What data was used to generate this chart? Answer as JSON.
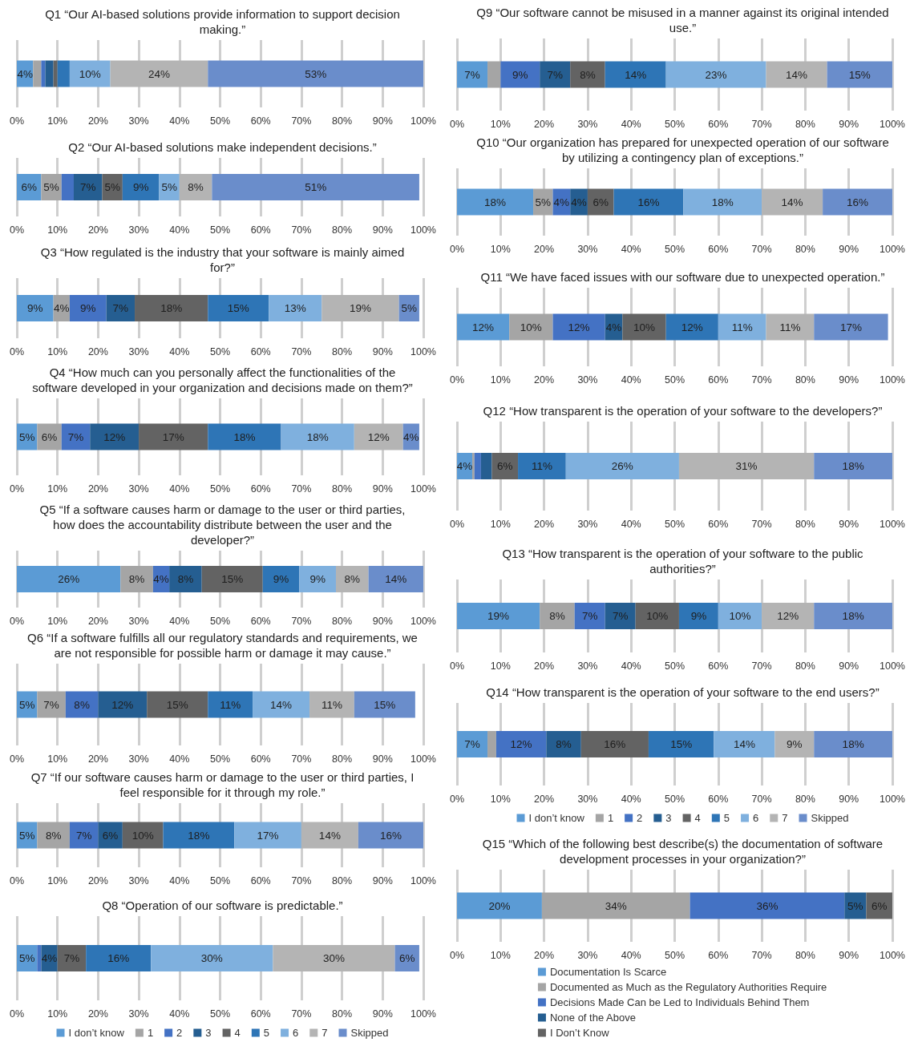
{
  "chart_data": [
    {
      "type": "bar",
      "orientation": "horizontal",
      "stacked": true,
      "title": "Q1 “Our AI-based solutions provide information to support decision making.”",
      "categories": [
        null
      ],
      "xlim": [
        0,
        100
      ],
      "xticks": [
        {
          "value": 0,
          "label": "0%"
        },
        {
          "value": 10,
          "label": "10%"
        },
        {
          "value": 20,
          "label": "20%"
        },
        {
          "value": 30,
          "label": "30%"
        },
        {
          "value": 40,
          "label": "40%"
        },
        {
          "value": 50,
          "label": "50%"
        },
        {
          "value": 60,
          "label": "60%"
        },
        {
          "value": 70,
          "label": "70%"
        },
        {
          "value": 80,
          "label": "80%"
        },
        {
          "value": 90,
          "label": "90%"
        },
        {
          "value": 100,
          "label": "100%"
        }
      ],
      "grid": "x",
      "series": [
        {
          "color": "#5b9bd5",
          "values": [
            4
          ],
          "value_labels": [
            "4%"
          ]
        },
        {
          "color": "#a5a5a5",
          "values": [
            2
          ],
          "value_labels": [
            null
          ]
        },
        {
          "color": "#4472c4",
          "values": [
            1
          ],
          "value_labels": [
            null
          ]
        },
        {
          "color": "#255e91",
          "values": [
            2
          ],
          "value_labels": [
            null
          ]
        },
        {
          "color": "#636363",
          "values": [
            1
          ],
          "value_labels": [
            null
          ]
        },
        {
          "color": "#2e75b6",
          "values": [
            3
          ],
          "value_labels": [
            null
          ]
        },
        {
          "color": "#7fb0de",
          "values": [
            10
          ],
          "value_labels": [
            "10%"
          ]
        },
        {
          "color": "#b4b4b4",
          "values": [
            24
          ],
          "value_labels": [
            "24%"
          ]
        },
        {
          "color": "#6a8dcb",
          "values": [
            53
          ],
          "value_labels": [
            "53%"
          ]
        }
      ]
    },
    {
      "type": "bar",
      "orientation": "horizontal",
      "stacked": true,
      "title": "Q2 “Our AI-based solutions make independent decisions.”",
      "categories": [
        null
      ],
      "xlim": [
        0,
        100
      ],
      "xticks": [
        {
          "value": 0,
          "label": "0%"
        },
        {
          "value": 10,
          "label": "10%"
        },
        {
          "value": 20,
          "label": "20%"
        },
        {
          "value": 30,
          "label": "30%"
        },
        {
          "value": 40,
          "label": "40%"
        },
        {
          "value": 50,
          "label": "50%"
        },
        {
          "value": 60,
          "label": "60%"
        },
        {
          "value": 70,
          "label": "70%"
        },
        {
          "value": 80,
          "label": "80%"
        },
        {
          "value": 90,
          "label": "90%"
        },
        {
          "value": 100,
          "label": "100%"
        }
      ],
      "grid": "x",
      "series": [
        {
          "color": "#5b9bd5",
          "values": [
            6
          ],
          "value_labels": [
            "6%"
          ]
        },
        {
          "color": "#a5a5a5",
          "values": [
            5
          ],
          "value_labels": [
            "5%"
          ]
        },
        {
          "color": "#4472c4",
          "values": [
            3
          ],
          "value_labels": [
            null
          ]
        },
        {
          "color": "#255e91",
          "values": [
            7
          ],
          "value_labels": [
            "7%"
          ]
        },
        {
          "color": "#636363",
          "values": [
            5
          ],
          "value_labels": [
            "5%"
          ]
        },
        {
          "color": "#2e75b6",
          "values": [
            9
          ],
          "value_labels": [
            "9%"
          ]
        },
        {
          "color": "#7fb0de",
          "values": [
            5
          ],
          "value_labels": [
            "5%"
          ]
        },
        {
          "color": "#b4b4b4",
          "values": [
            8
          ],
          "value_labels": [
            "8%"
          ]
        },
        {
          "color": "#6a8dcb",
          "values": [
            51
          ],
          "value_labels": [
            "51%"
          ]
        }
      ]
    },
    {
      "type": "bar",
      "orientation": "horizontal",
      "stacked": true,
      "title": "Q3 “How regulated is the industry that your software is mainly aimed for?”",
      "categories": [
        null
      ],
      "xlim": [
        0,
        100
      ],
      "xticks": [
        {
          "value": 0,
          "label": "0%"
        },
        {
          "value": 10,
          "label": "10%"
        },
        {
          "value": 20,
          "label": "20%"
        },
        {
          "value": 30,
          "label": "30%"
        },
        {
          "value": 40,
          "label": "40%"
        },
        {
          "value": 50,
          "label": "50%"
        },
        {
          "value": 60,
          "label": "60%"
        },
        {
          "value": 70,
          "label": "70%"
        },
        {
          "value": 80,
          "label": "80%"
        },
        {
          "value": 90,
          "label": "90%"
        },
        {
          "value": 100,
          "label": "100%"
        }
      ],
      "grid": "x",
      "series": [
        {
          "color": "#5b9bd5",
          "values": [
            9
          ],
          "value_labels": [
            "9%"
          ]
        },
        {
          "color": "#a5a5a5",
          "values": [
            4
          ],
          "value_labels": [
            "4%"
          ]
        },
        {
          "color": "#4472c4",
          "values": [
            9
          ],
          "value_labels": [
            "9%"
          ]
        },
        {
          "color": "#255e91",
          "values": [
            7
          ],
          "value_labels": [
            "7%"
          ]
        },
        {
          "color": "#636363",
          "values": [
            18
          ],
          "value_labels": [
            "18%"
          ]
        },
        {
          "color": "#2e75b6",
          "values": [
            15
          ],
          "value_labels": [
            "15%"
          ]
        },
        {
          "color": "#7fb0de",
          "values": [
            13
          ],
          "value_labels": [
            "13%"
          ]
        },
        {
          "color": "#b4b4b4",
          "values": [
            19
          ],
          "value_labels": [
            "19%"
          ]
        },
        {
          "color": "#6a8dcb",
          "values": [
            5
          ],
          "value_labels": [
            "5%"
          ]
        }
      ]
    },
    {
      "type": "bar",
      "orientation": "horizontal",
      "stacked": true,
      "title": "Q4 “How much can you personally affect the functionalities of the software developed in your organization and decisions made on them?”",
      "categories": [
        null
      ],
      "xlim": [
        0,
        100
      ],
      "xticks": [
        {
          "value": 0,
          "label": "0%"
        },
        {
          "value": 10,
          "label": "10%"
        },
        {
          "value": 20,
          "label": "20%"
        },
        {
          "value": 30,
          "label": "30%"
        },
        {
          "value": 40,
          "label": "40%"
        },
        {
          "value": 50,
          "label": "50%"
        },
        {
          "value": 60,
          "label": "60%"
        },
        {
          "value": 70,
          "label": "70%"
        },
        {
          "value": 80,
          "label": "80%"
        },
        {
          "value": 90,
          "label": "90%"
        },
        {
          "value": 100,
          "label": "100%"
        }
      ],
      "grid": "x",
      "series": [
        {
          "color": "#5b9bd5",
          "values": [
            5
          ],
          "value_labels": [
            "5%"
          ]
        },
        {
          "color": "#a5a5a5",
          "values": [
            6
          ],
          "value_labels": [
            "6%"
          ]
        },
        {
          "color": "#4472c4",
          "values": [
            7
          ],
          "value_labels": [
            "7%"
          ]
        },
        {
          "color": "#255e91",
          "values": [
            12
          ],
          "value_labels": [
            "12%"
          ]
        },
        {
          "color": "#636363",
          "values": [
            17
          ],
          "value_labels": [
            "17%"
          ]
        },
        {
          "color": "#2e75b6",
          "values": [
            18
          ],
          "value_labels": [
            "18%"
          ]
        },
        {
          "color": "#7fb0de",
          "values": [
            18
          ],
          "value_labels": [
            "18%"
          ]
        },
        {
          "color": "#b4b4b4",
          "values": [
            12
          ],
          "value_labels": [
            "12%"
          ]
        },
        {
          "color": "#6a8dcb",
          "values": [
            4
          ],
          "value_labels": [
            "4%"
          ]
        }
      ]
    },
    {
      "type": "bar",
      "orientation": "horizontal",
      "stacked": true,
      "title": "Q5 “If a software causes harm or damage to the user or third parties, how does the accountability distribute between the user and the developer?”",
      "categories": [
        null
      ],
      "xlim": [
        0,
        100
      ],
      "xticks": [
        {
          "value": 0,
          "label": "0%"
        },
        {
          "value": 10,
          "label": "10%"
        },
        {
          "value": 20,
          "label": "20%"
        },
        {
          "value": 30,
          "label": "30%"
        },
        {
          "value": 40,
          "label": "40%"
        },
        {
          "value": 50,
          "label": "50%"
        },
        {
          "value": 60,
          "label": "60%"
        },
        {
          "value": 70,
          "label": "70%"
        },
        {
          "value": 80,
          "label": "80%"
        },
        {
          "value": 90,
          "label": "90%"
        },
        {
          "value": 100,
          "label": "100%"
        }
      ],
      "grid": "x",
      "series": [
        {
          "color": "#5b9bd5",
          "values": [
            25.5
          ],
          "value_labels": [
            "26%"
          ]
        },
        {
          "color": "#a5a5a5",
          "values": [
            8
          ],
          "value_labels": [
            "8%"
          ]
        },
        {
          "color": "#4472c4",
          "values": [
            4
          ],
          "value_labels": [
            "4%"
          ]
        },
        {
          "color": "#255e91",
          "values": [
            8
          ],
          "value_labels": [
            "8%"
          ]
        },
        {
          "color": "#636363",
          "values": [
            15
          ],
          "value_labels": [
            "15%"
          ]
        },
        {
          "color": "#2e75b6",
          "values": [
            9
          ],
          "value_labels": [
            "9%"
          ]
        },
        {
          "color": "#7fb0de",
          "values": [
            9
          ],
          "value_labels": [
            "9%"
          ]
        },
        {
          "color": "#b4b4b4",
          "values": [
            8
          ],
          "value_labels": [
            "8%"
          ]
        },
        {
          "color": "#6a8dcb",
          "values": [
            13.5
          ],
          "value_labels": [
            "14%"
          ]
        }
      ]
    },
    {
      "type": "bar",
      "orientation": "horizontal",
      "stacked": true,
      "title": "Q6 “If a software fulfills all our regulatory standards and requirements, we are not responsible for possible harm or damage it may cause.”",
      "categories": [
        null
      ],
      "xlim": [
        0,
        100
      ],
      "xticks": [
        {
          "value": 0,
          "label": "0%"
        },
        {
          "value": 10,
          "label": "10%"
        },
        {
          "value": 20,
          "label": "20%"
        },
        {
          "value": 30,
          "label": "30%"
        },
        {
          "value": 40,
          "label": "40%"
        },
        {
          "value": 50,
          "label": "50%"
        },
        {
          "value": 60,
          "label": "60%"
        },
        {
          "value": 70,
          "label": "70%"
        },
        {
          "value": 80,
          "label": "80%"
        },
        {
          "value": 90,
          "label": "90%"
        },
        {
          "value": 100,
          "label": "100%"
        }
      ],
      "grid": "x",
      "series": [
        {
          "color": "#5b9bd5",
          "values": [
            5
          ],
          "value_labels": [
            "5%"
          ]
        },
        {
          "color": "#a5a5a5",
          "values": [
            7
          ],
          "value_labels": [
            "7%"
          ]
        },
        {
          "color": "#4472c4",
          "values": [
            8
          ],
          "value_labels": [
            "8%"
          ]
        },
        {
          "color": "#255e91",
          "values": [
            12
          ],
          "value_labels": [
            "12%"
          ]
        },
        {
          "color": "#636363",
          "values": [
            15
          ],
          "value_labels": [
            "15%"
          ]
        },
        {
          "color": "#2e75b6",
          "values": [
            11
          ],
          "value_labels": [
            "11%"
          ]
        },
        {
          "color": "#7fb0de",
          "values": [
            14
          ],
          "value_labels": [
            "14%"
          ]
        },
        {
          "color": "#b4b4b4",
          "values": [
            11
          ],
          "value_labels": [
            "11%"
          ]
        },
        {
          "color": "#6a8dcb",
          "values": [
            15
          ],
          "value_labels": [
            "15%"
          ]
        }
      ]
    },
    {
      "type": "bar",
      "orientation": "horizontal",
      "stacked": true,
      "title": "Q7 “If our software causes harm or damage to the user or third parties, I feel responsible for it through my role.”",
      "categories": [
        null
      ],
      "xlim": [
        0,
        100
      ],
      "xticks": [
        {
          "value": 0,
          "label": "0%"
        },
        {
          "value": 10,
          "label": "10%"
        },
        {
          "value": 20,
          "label": "20%"
        },
        {
          "value": 30,
          "label": "30%"
        },
        {
          "value": 40,
          "label": "40%"
        },
        {
          "value": 50,
          "label": "50%"
        },
        {
          "value": 60,
          "label": "60%"
        },
        {
          "value": 70,
          "label": "70%"
        },
        {
          "value": 80,
          "label": "80%"
        },
        {
          "value": 90,
          "label": "90%"
        },
        {
          "value": 100,
          "label": "100%"
        }
      ],
      "grid": "x",
      "series": [
        {
          "color": "#5b9bd5",
          "values": [
            5
          ],
          "value_labels": [
            "5%"
          ]
        },
        {
          "color": "#a5a5a5",
          "values": [
            8
          ],
          "value_labels": [
            "8%"
          ]
        },
        {
          "color": "#4472c4",
          "values": [
            7
          ],
          "value_labels": [
            "7%"
          ]
        },
        {
          "color": "#255e91",
          "values": [
            6
          ],
          "value_labels": [
            "6%"
          ]
        },
        {
          "color": "#636363",
          "values": [
            10
          ],
          "value_labels": [
            "10%"
          ]
        },
        {
          "color": "#2e75b6",
          "values": [
            17.5
          ],
          "value_labels": [
            "18%"
          ]
        },
        {
          "color": "#7fb0de",
          "values": [
            16.5
          ],
          "value_labels": [
            "17%"
          ]
        },
        {
          "color": "#b4b4b4",
          "values": [
            14
          ],
          "value_labels": [
            "14%"
          ]
        },
        {
          "color": "#6a8dcb",
          "values": [
            16
          ],
          "value_labels": [
            "16%"
          ]
        }
      ]
    },
    {
      "type": "bar",
      "orientation": "horizontal",
      "stacked": true,
      "title": "Q8 “Operation of our software is predictable.”",
      "categories": [
        null
      ],
      "xlim": [
        0,
        100
      ],
      "xticks": [
        {
          "value": 0,
          "label": "0%"
        },
        {
          "value": 10,
          "label": "10%"
        },
        {
          "value": 20,
          "label": "20%"
        },
        {
          "value": 30,
          "label": "30%"
        },
        {
          "value": 40,
          "label": "40%"
        },
        {
          "value": 50,
          "label": "50%"
        },
        {
          "value": 60,
          "label": "60%"
        },
        {
          "value": 70,
          "label": "70%"
        },
        {
          "value": 80,
          "label": "80%"
        },
        {
          "value": 90,
          "label": "90%"
        },
        {
          "value": 100,
          "label": "100%"
        }
      ],
      "grid": "x",
      "legend": "bottom",
      "series": [
        {
          "name": "I don’t know",
          "color": "#5b9bd5",
          "values": [
            5
          ],
          "value_labels": [
            "5%"
          ]
        },
        {
          "name": "1",
          "color": "#a5a5a5",
          "values": [
            0
          ],
          "value_labels": [
            null
          ]
        },
        {
          "name": "2",
          "color": "#4472c4",
          "values": [
            1
          ],
          "value_labels": [
            null
          ]
        },
        {
          "name": "3",
          "color": "#255e91",
          "values": [
            4
          ],
          "value_labels": [
            "4%"
          ]
        },
        {
          "name": "4",
          "color": "#636363",
          "values": [
            7
          ],
          "value_labels": [
            "7%"
          ]
        },
        {
          "name": "5",
          "color": "#2e75b6",
          "values": [
            16
          ],
          "value_labels": [
            "16%"
          ]
        },
        {
          "name": "6",
          "color": "#7fb0de",
          "values": [
            30
          ],
          "value_labels": [
            "30%"
          ]
        },
        {
          "name": "7",
          "color": "#b4b4b4",
          "values": [
            30
          ],
          "value_labels": [
            "30%"
          ]
        },
        {
          "name": "Skipped",
          "color": "#6a8dcb",
          "values": [
            6
          ],
          "value_labels": [
            "6%"
          ]
        }
      ]
    },
    {
      "type": "bar",
      "orientation": "horizontal",
      "stacked": true,
      "title": "Q9 “Our software cannot be misused in a manner against its original intended use.”",
      "categories": [
        null
      ],
      "xlim": [
        0,
        100
      ],
      "xticks": [
        {
          "value": 0,
          "label": "0%"
        },
        {
          "value": 10,
          "label": "10%"
        },
        {
          "value": 20,
          "label": "20%"
        },
        {
          "value": 30,
          "label": "30%"
        },
        {
          "value": 40,
          "label": "40%"
        },
        {
          "value": 50,
          "label": "50%"
        },
        {
          "value": 60,
          "label": "60%"
        },
        {
          "value": 70,
          "label": "70%"
        },
        {
          "value": 80,
          "label": "80%"
        },
        {
          "value": 90,
          "label": "90%"
        },
        {
          "value": 100,
          "label": "100%"
        }
      ],
      "grid": "x",
      "series": [
        {
          "color": "#5b9bd5",
          "values": [
            7
          ],
          "value_labels": [
            "7%"
          ]
        },
        {
          "color": "#a5a5a5",
          "values": [
            3
          ],
          "value_labels": [
            null
          ]
        },
        {
          "color": "#4472c4",
          "values": [
            9
          ],
          "value_labels": [
            "9%"
          ]
        },
        {
          "color": "#255e91",
          "values": [
            7
          ],
          "value_labels": [
            "7%"
          ]
        },
        {
          "color": "#636363",
          "values": [
            8
          ],
          "value_labels": [
            "8%"
          ]
        },
        {
          "color": "#2e75b6",
          "values": [
            14
          ],
          "value_labels": [
            "14%"
          ]
        },
        {
          "color": "#7fb0de",
          "values": [
            23
          ],
          "value_labels": [
            "23%"
          ]
        },
        {
          "color": "#b4b4b4",
          "values": [
            14
          ],
          "value_labels": [
            "14%"
          ]
        },
        {
          "color": "#6a8dcb",
          "values": [
            15
          ],
          "value_labels": [
            "15%"
          ]
        }
      ]
    },
    {
      "type": "bar",
      "orientation": "horizontal",
      "stacked": true,
      "title": "Q10 “Our organization has prepared for unexpected operation of our software by utilizing a contingency plan of exceptions.”",
      "categories": [
        null
      ],
      "xlim": [
        0,
        100
      ],
      "xticks": [
        {
          "value": 0,
          "label": "0%"
        },
        {
          "value": 10,
          "label": "10%"
        },
        {
          "value": 20,
          "label": "20%"
        },
        {
          "value": 30,
          "label": "30%"
        },
        {
          "value": 40,
          "label": "40%"
        },
        {
          "value": 50,
          "label": "50%"
        },
        {
          "value": 60,
          "label": "60%"
        },
        {
          "value": 70,
          "label": "70%"
        },
        {
          "value": 80,
          "label": "80%"
        },
        {
          "value": 90,
          "label": "90%"
        },
        {
          "value": 100,
          "label": "100%"
        }
      ],
      "grid": "x",
      "series": [
        {
          "color": "#5b9bd5",
          "values": [
            17.5
          ],
          "value_labels": [
            "18%"
          ]
        },
        {
          "color": "#a5a5a5",
          "values": [
            4.5
          ],
          "value_labels": [
            "5%"
          ]
        },
        {
          "color": "#4472c4",
          "values": [
            4
          ],
          "value_labels": [
            "4%"
          ]
        },
        {
          "color": "#255e91",
          "values": [
            4
          ],
          "value_labels": [
            "4%"
          ]
        },
        {
          "color": "#636363",
          "values": [
            6
          ],
          "value_labels": [
            "6%"
          ]
        },
        {
          "color": "#2e75b6",
          "values": [
            16
          ],
          "value_labels": [
            "16%"
          ]
        },
        {
          "color": "#7fb0de",
          "values": [
            18
          ],
          "value_labels": [
            "18%"
          ]
        },
        {
          "color": "#b4b4b4",
          "values": [
            14
          ],
          "value_labels": [
            "14%"
          ]
        },
        {
          "color": "#6a8dcb",
          "values": [
            16
          ],
          "value_labels": [
            "16%"
          ]
        }
      ]
    },
    {
      "type": "bar",
      "orientation": "horizontal",
      "stacked": true,
      "title": "Q11 “We have faced issues with our software due to unexpected operation.”",
      "categories": [
        null
      ],
      "xlim": [
        0,
        100
      ],
      "xticks": [
        {
          "value": 0,
          "label": "0%"
        },
        {
          "value": 10,
          "label": "10%"
        },
        {
          "value": 20,
          "label": "20%"
        },
        {
          "value": 30,
          "label": "30%"
        },
        {
          "value": 40,
          "label": "40%"
        },
        {
          "value": 50,
          "label": "50%"
        },
        {
          "value": 60,
          "label": "60%"
        },
        {
          "value": 70,
          "label": "70%"
        },
        {
          "value": 80,
          "label": "80%"
        },
        {
          "value": 90,
          "label": "90%"
        },
        {
          "value": 100,
          "label": "100%"
        }
      ],
      "grid": "x",
      "series": [
        {
          "color": "#5b9bd5",
          "values": [
            12
          ],
          "value_labels": [
            "12%"
          ]
        },
        {
          "color": "#a5a5a5",
          "values": [
            10
          ],
          "value_labels": [
            "10%"
          ]
        },
        {
          "color": "#4472c4",
          "values": [
            12
          ],
          "value_labels": [
            "12%"
          ]
        },
        {
          "color": "#255e91",
          "values": [
            4
          ],
          "value_labels": [
            "4%"
          ]
        },
        {
          "color": "#636363",
          "values": [
            10
          ],
          "value_labels": [
            "10%"
          ]
        },
        {
          "color": "#2e75b6",
          "values": [
            12
          ],
          "value_labels": [
            "12%"
          ]
        },
        {
          "color": "#7fb0de",
          "values": [
            11
          ],
          "value_labels": [
            "11%"
          ]
        },
        {
          "color": "#b4b4b4",
          "values": [
            11
          ],
          "value_labels": [
            "11%"
          ]
        },
        {
          "color": "#6a8dcb",
          "values": [
            17
          ],
          "value_labels": [
            "17%"
          ]
        }
      ]
    },
    {
      "type": "bar",
      "orientation": "horizontal",
      "stacked": true,
      "title": "Q12 “How transparent is the operation of your software to the developers?”",
      "categories": [
        null
      ],
      "xlim": [
        0,
        100
      ],
      "xticks": [
        {
          "value": 0,
          "label": "0%"
        },
        {
          "value": 10,
          "label": "10%"
        },
        {
          "value": 20,
          "label": "20%"
        },
        {
          "value": 30,
          "label": "30%"
        },
        {
          "value": 40,
          "label": "40%"
        },
        {
          "value": 50,
          "label": "50%"
        },
        {
          "value": 60,
          "label": "60%"
        },
        {
          "value": 70,
          "label": "70%"
        },
        {
          "value": 80,
          "label": "80%"
        },
        {
          "value": 90,
          "label": "90%"
        },
        {
          "value": 100,
          "label": "100%"
        }
      ],
      "grid": "x",
      "series": [
        {
          "color": "#5b9bd5",
          "values": [
            3.5
          ],
          "value_labels": [
            "4%"
          ]
        },
        {
          "color": "#a5a5a5",
          "values": [
            0.5
          ],
          "value_labels": [
            null
          ]
        },
        {
          "color": "#4472c4",
          "values": [
            1.5
          ],
          "value_labels": [
            null
          ]
        },
        {
          "color": "#255e91",
          "values": [
            2.5
          ],
          "value_labels": [
            null
          ]
        },
        {
          "color": "#636363",
          "values": [
            6
          ],
          "value_labels": [
            "6%"
          ]
        },
        {
          "color": "#2e75b6",
          "values": [
            11
          ],
          "value_labels": [
            "11%"
          ]
        },
        {
          "color": "#7fb0de",
          "values": [
            26
          ],
          "value_labels": [
            "26%"
          ]
        },
        {
          "color": "#b4b4b4",
          "values": [
            31
          ],
          "value_labels": [
            "31%"
          ]
        },
        {
          "color": "#6a8dcb",
          "values": [
            18
          ],
          "value_labels": [
            "18%"
          ]
        }
      ]
    },
    {
      "type": "bar",
      "orientation": "horizontal",
      "stacked": true,
      "title": "Q13 “How transparent is the operation of your software to the public authorities?”",
      "categories": [
        null
      ],
      "xlim": [
        0,
        100
      ],
      "xticks": [
        {
          "value": 0,
          "label": "0%"
        },
        {
          "value": 10,
          "label": "10%"
        },
        {
          "value": 20,
          "label": "20%"
        },
        {
          "value": 30,
          "label": "30%"
        },
        {
          "value": 40,
          "label": "40%"
        },
        {
          "value": 50,
          "label": "50%"
        },
        {
          "value": 60,
          "label": "60%"
        },
        {
          "value": 70,
          "label": "70%"
        },
        {
          "value": 80,
          "label": "80%"
        },
        {
          "value": 90,
          "label": "90%"
        },
        {
          "value": 100,
          "label": "100%"
        }
      ],
      "grid": "x",
      "series": [
        {
          "color": "#5b9bd5",
          "values": [
            19
          ],
          "value_labels": [
            "19%"
          ]
        },
        {
          "color": "#a5a5a5",
          "values": [
            8
          ],
          "value_labels": [
            "8%"
          ]
        },
        {
          "color": "#4472c4",
          "values": [
            7
          ],
          "value_labels": [
            "7%"
          ]
        },
        {
          "color": "#255e91",
          "values": [
            7
          ],
          "value_labels": [
            "7%"
          ]
        },
        {
          "color": "#636363",
          "values": [
            10
          ],
          "value_labels": [
            "10%"
          ]
        },
        {
          "color": "#2e75b6",
          "values": [
            9
          ],
          "value_labels": [
            "9%"
          ]
        },
        {
          "color": "#7fb0de",
          "values": [
            10
          ],
          "value_labels": [
            "10%"
          ]
        },
        {
          "color": "#b4b4b4",
          "values": [
            12
          ],
          "value_labels": [
            "12%"
          ]
        },
        {
          "color": "#6a8dcb",
          "values": [
            18
          ],
          "value_labels": [
            "18%"
          ]
        }
      ]
    },
    {
      "type": "bar",
      "orientation": "horizontal",
      "stacked": true,
      "title": "Q14 “How transparent is the operation of your software to the end users?”",
      "categories": [
        null
      ],
      "xlim": [
        0,
        100
      ],
      "xticks": [
        {
          "value": 0,
          "label": "0%"
        },
        {
          "value": 10,
          "label": "10%"
        },
        {
          "value": 20,
          "label": "20%"
        },
        {
          "value": 30,
          "label": "30%"
        },
        {
          "value": 40,
          "label": "40%"
        },
        {
          "value": 50,
          "label": "50%"
        },
        {
          "value": 60,
          "label": "60%"
        },
        {
          "value": 70,
          "label": "70%"
        },
        {
          "value": 80,
          "label": "80%"
        },
        {
          "value": 90,
          "label": "90%"
        },
        {
          "value": 100,
          "label": "100%"
        }
      ],
      "grid": "x",
      "legend": "bottom",
      "series": [
        {
          "name": "I don’t know",
          "color": "#5b9bd5",
          "values": [
            7
          ],
          "value_labels": [
            "7%"
          ]
        },
        {
          "name": "1",
          "color": "#a5a5a5",
          "values": [
            2
          ],
          "value_labels": [
            null
          ]
        },
        {
          "name": "2",
          "color": "#4472c4",
          "values": [
            11.5
          ],
          "value_labels": [
            "12%"
          ]
        },
        {
          "name": "3",
          "color": "#255e91",
          "values": [
            8
          ],
          "value_labels": [
            "8%"
          ]
        },
        {
          "name": "4",
          "color": "#636363",
          "values": [
            15.5
          ],
          "value_labels": [
            "16%"
          ]
        },
        {
          "name": "5",
          "color": "#2e75b6",
          "values": [
            15
          ],
          "value_labels": [
            "15%"
          ]
        },
        {
          "name": "6",
          "color": "#7fb0de",
          "values": [
            14
          ],
          "value_labels": [
            "14%"
          ]
        },
        {
          "name": "7",
          "color": "#b4b4b4",
          "values": [
            9
          ],
          "value_labels": [
            "9%"
          ]
        },
        {
          "name": "Skipped",
          "color": "#6a8dcb",
          "values": [
            18
          ],
          "value_labels": [
            "18%"
          ]
        }
      ]
    },
    {
      "type": "bar",
      "orientation": "horizontal",
      "stacked": true,
      "title": "Q15 “Which of the following best describe(s) the documentation of software development processes in your organization?”",
      "categories": [
        null
      ],
      "xlim": [
        0,
        100
      ],
      "xticks": [
        {
          "value": 0,
          "label": "0%"
        },
        {
          "value": 10,
          "label": "10%"
        },
        {
          "value": 20,
          "label": "20%"
        },
        {
          "value": 30,
          "label": "30%"
        },
        {
          "value": 40,
          "label": "40%"
        },
        {
          "value": 50,
          "label": "50%"
        },
        {
          "value": 60,
          "label": "60%"
        },
        {
          "value": 70,
          "label": "70%"
        },
        {
          "value": 80,
          "label": "80%"
        },
        {
          "value": 90,
          "label": "90%"
        },
        {
          "value": 100,
          "label": "100%"
        }
      ],
      "grid": "x",
      "legend": "bottom",
      "series": [
        {
          "name": "Documentation Is Scarce",
          "color": "#5b9bd5",
          "values": [
            19.5
          ],
          "value_labels": [
            "20%"
          ]
        },
        {
          "name": "Documented as Much as the Regulatory Authorities Require",
          "color": "#a5a5a5",
          "values": [
            34
          ],
          "value_labels": [
            "34%"
          ]
        },
        {
          "name": "Decisions Made Can be Led to Individuals Behind Them",
          "color": "#4472c4",
          "values": [
            35.5
          ],
          "value_labels": [
            "36%"
          ]
        },
        {
          "name": "None of the Above",
          "color": "#255e91",
          "values": [
            5
          ],
          "value_labels": [
            "5%"
          ]
        },
        {
          "name": "I Don’t Know",
          "color": "#636363",
          "values": [
            6
          ],
          "value_labels": [
            "6%"
          ]
        }
      ]
    }
  ]
}
